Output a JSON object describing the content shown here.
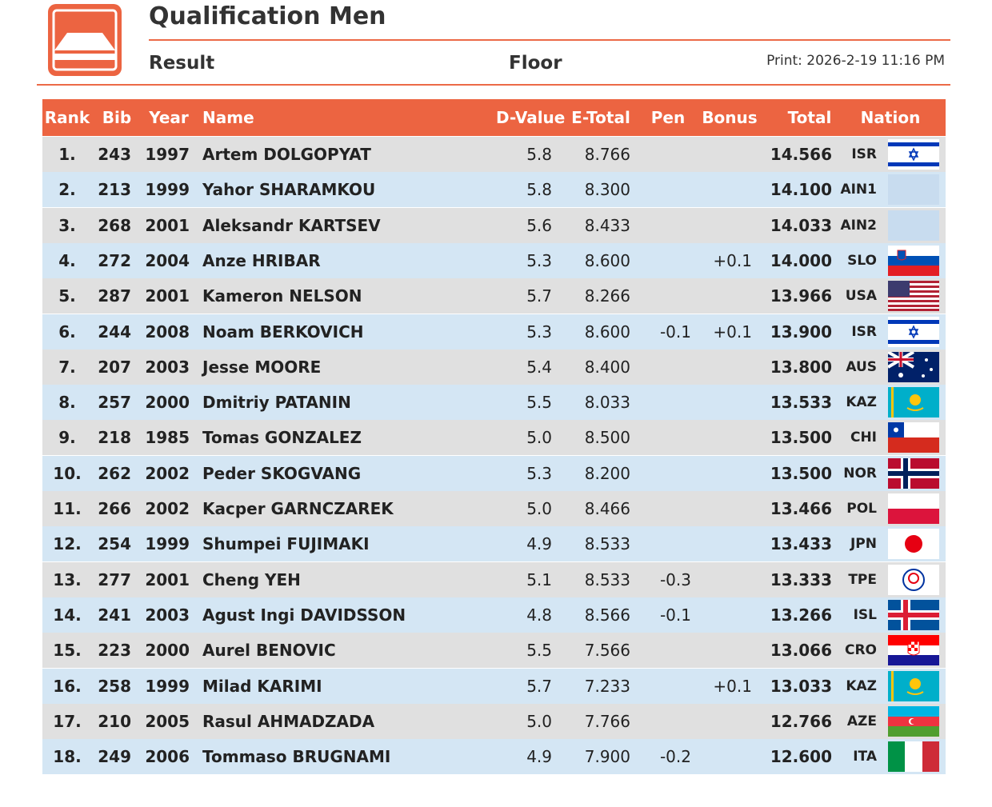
{
  "header": {
    "title": "Qualification Men",
    "subtitle": "Result",
    "apparatus": "Floor",
    "print": "Print: 2026-2-19 11:16 PM"
  },
  "table": {
    "columns": [
      "Rank",
      "Bib",
      "Year",
      "Name",
      "D-Value",
      "E-Total",
      "Pen",
      "Bonus",
      "Total",
      "Nation"
    ],
    "rows": [
      [
        "1.",
        "243",
        "1997",
        "Artem DOLGOPYAT",
        "5.8",
        "8.766",
        null,
        null,
        "14.566",
        "ISR"
      ],
      [
        "2.",
        "213",
        "1999",
        "Yahor SHARAMKOU",
        "5.8",
        "8.300",
        null,
        null,
        "14.100",
        "AIN1"
      ],
      [
        "3.",
        "268",
        "2001",
        "Aleksandr KARTSEV",
        "5.6",
        "8.433",
        null,
        null,
        "14.033",
        "AIN2"
      ],
      [
        "4.",
        "272",
        "2004",
        "Anze HRIBAR",
        "5.3",
        "8.600",
        null,
        "+0.1",
        "14.000",
        "SLO"
      ],
      [
        "5.",
        "287",
        "2001",
        "Kameron NELSON",
        "5.7",
        "8.266",
        null,
        null,
        "13.966",
        "USA"
      ],
      [
        "6.",
        "244",
        "2008",
        "Noam BERKOVICH",
        "5.3",
        "8.600",
        "-0.1",
        "+0.1",
        "13.900",
        "ISR"
      ],
      [
        "7.",
        "207",
        "2003",
        "Jesse MOORE",
        "5.4",
        "8.400",
        null,
        null,
        "13.800",
        "AUS"
      ],
      [
        "8.",
        "257",
        "2000",
        "Dmitriy PATANIN",
        "5.5",
        "8.033",
        null,
        null,
        "13.533",
        "KAZ"
      ],
      [
        "9.",
        "218",
        "1985",
        "Tomas GONZALEZ",
        "5.0",
        "8.500",
        null,
        null,
        "13.500",
        "CHI"
      ],
      [
        "10.",
        "262",
        "2002",
        "Peder SKOGVANG",
        "5.3",
        "8.200",
        null,
        null,
        "13.500",
        "NOR"
      ],
      [
        "11.",
        "266",
        "2002",
        "Kacper GARNCZAREK",
        "5.0",
        "8.466",
        null,
        null,
        "13.466",
        "POL"
      ],
      [
        "12.",
        "254",
        "1999",
        "Shumpei FUJIMAKI",
        "4.9",
        "8.533",
        null,
        null,
        "13.433",
        "JPN"
      ],
      [
        "13.",
        "277",
        "2001",
        "Cheng YEH",
        "5.1",
        "8.533",
        "-0.3",
        null,
        "13.333",
        "TPE"
      ],
      [
        "14.",
        "241",
        "2003",
        "Agust Ingi DAVIDSSON",
        "4.8",
        "8.566",
        "-0.1",
        null,
        "13.266",
        "ISL"
      ],
      [
        "15.",
        "223",
        "2000",
        "Aurel BENOVIC",
        "5.5",
        "7.566",
        null,
        null,
        "13.066",
        "CRO"
      ],
      [
        "16.",
        "258",
        "1999",
        "Milad KARIMI",
        "5.7",
        "7.233",
        null,
        "+0.1",
        "13.033",
        "KAZ"
      ],
      [
        "17.",
        "210",
        "2005",
        "Rasul AHMADZADA",
        "5.0",
        "7.766",
        null,
        null,
        "12.766",
        "AZE"
      ],
      [
        "18.",
        "249",
        "2006",
        "Tommaso BRUGNAMI",
        "4.9",
        "7.900",
        "-0.2",
        null,
        "12.600",
        "ITA"
      ]
    ]
  }
}
